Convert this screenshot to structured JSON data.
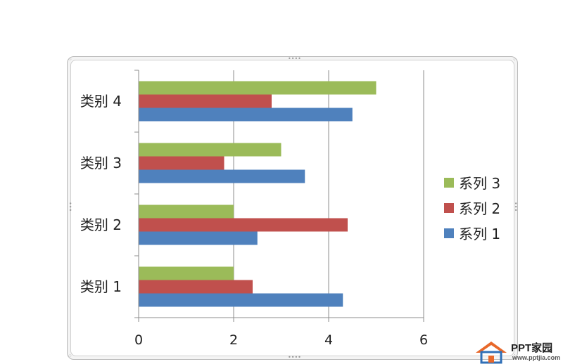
{
  "chart_data": {
    "type": "bar",
    "orientation": "horizontal",
    "categories": [
      "类别 1",
      "类别 2",
      "类别 3",
      "类别 4"
    ],
    "series": [
      {
        "name": "系列 1",
        "values": [
          4.3,
          2.5,
          3.5,
          4.5
        ],
        "color": "#4F81BD"
      },
      {
        "name": "系列 2",
        "values": [
          2.4,
          4.4,
          1.8,
          2.8
        ],
        "color": "#C0504D"
      },
      {
        "name": "系列 3",
        "values": [
          2.0,
          2.0,
          3.0,
          5.0
        ],
        "color": "#9BBB59"
      }
    ],
    "xlim": [
      0,
      6
    ],
    "xticks": [
      "0",
      "2",
      "4",
      "6"
    ],
    "grid": true,
    "legend_position": "right",
    "legend_order": [
      "系列 3",
      "系列 2",
      "系列 1"
    ]
  },
  "watermark": {
    "title": "PPT家园",
    "url": "www.pptjia.com",
    "icon": "house-icon"
  }
}
